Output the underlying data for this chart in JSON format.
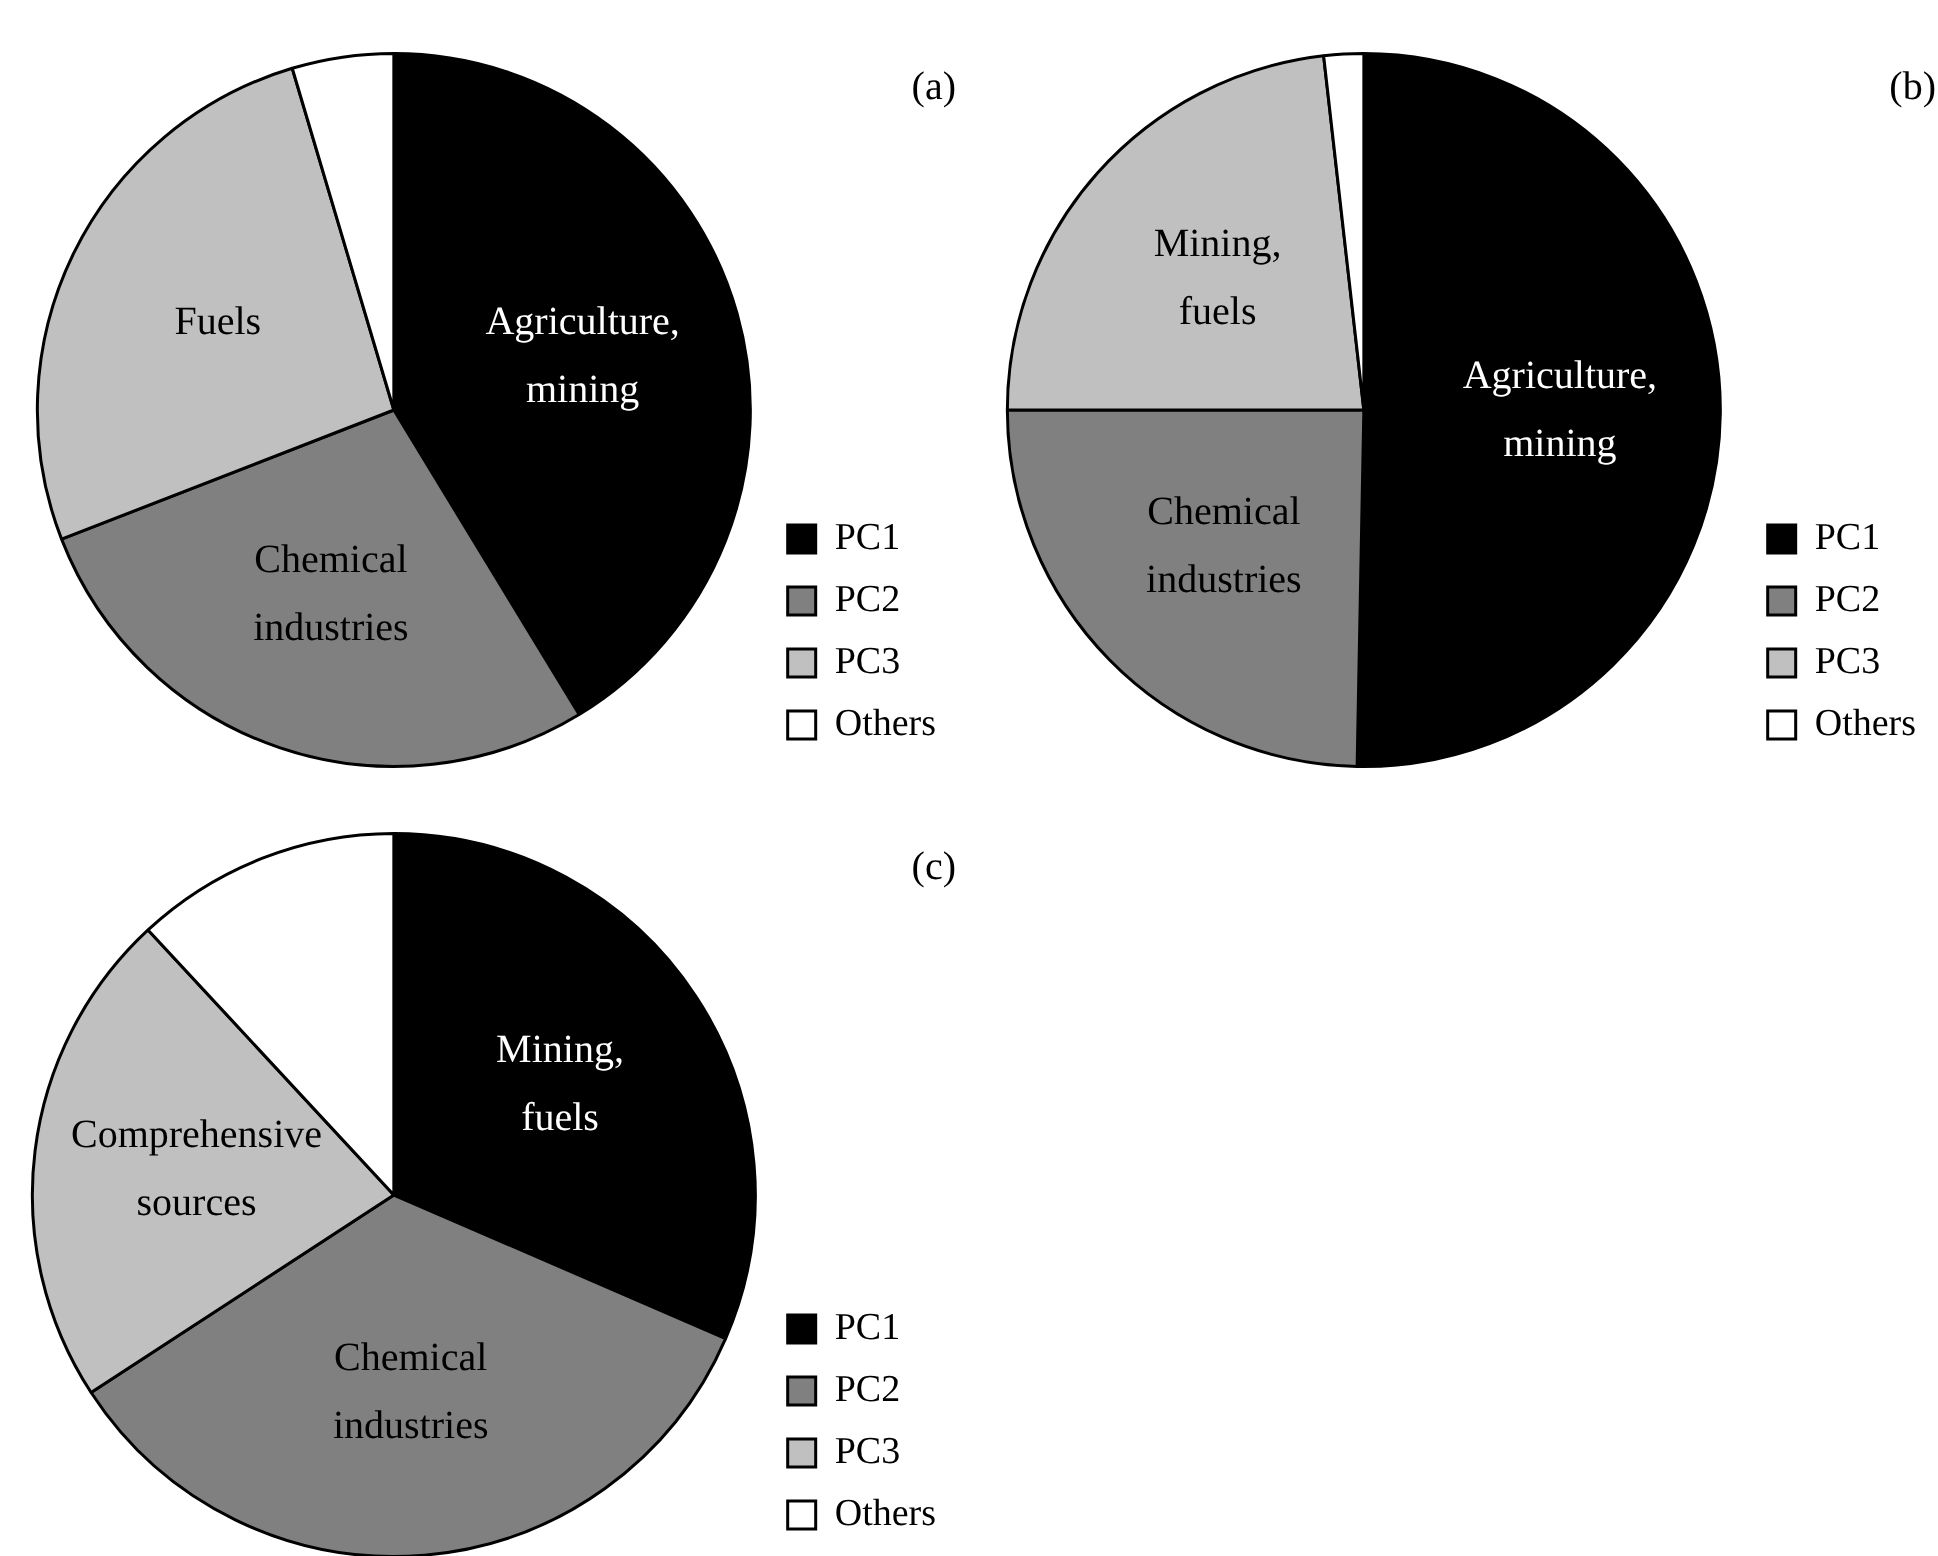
{
  "chart_data": [
    {
      "type": "pie",
      "title": "(a)",
      "categories": [
        "PC1",
        "PC2",
        "PC3",
        "Others"
      ],
      "values": [
        41.3,
        27.8,
        26.3,
        4.6
      ],
      "colors": [
        "#000000",
        "#808080",
        "#c0c0c0",
        "#ffffff"
      ],
      "legend": "bottom right",
      "annotations": [
        {
          "text": "Agriculture,\nmining",
          "x": "PC1"
        },
        {
          "text": "Chemical\nindustries",
          "x": "PC2"
        },
        {
          "text": "Fuels",
          "x": "PC3"
        }
      ]
    },
    {
      "type": "pie",
      "title": "(b)",
      "categories": [
        "PC1",
        "PC2",
        "PC3",
        "Others"
      ],
      "values": [
        50.3,
        24.7,
        23.2,
        1.8
      ],
      "colors": [
        "#000000",
        "#808080",
        "#c0c0c0",
        "#ffffff"
      ],
      "legend": "bottom right",
      "annotations": [
        {
          "text": "Agriculture,\nmining",
          "x": "PC1"
        },
        {
          "text": "Chemical\nindustries",
          "x": "PC2"
        },
        {
          "text": "Mining,\nfuels",
          "x": "PC3"
        }
      ]
    },
    {
      "type": "pie",
      "title": "(c)",
      "categories": [
        "PC1",
        "PC2",
        "PC3",
        "Others"
      ],
      "values": [
        31.5,
        34.3,
        22.3,
        11.9
      ],
      "colors": [
        "#000000",
        "#808080",
        "#c0c0c0",
        "#ffffff"
      ],
      "legend": "bottom right",
      "annotations": [
        {
          "text": "Mining,\nfuels",
          "x": "PC1"
        },
        {
          "text": "Chemical\nindustries",
          "x": "PC2"
        },
        {
          "text": "Comprehensive\nsources",
          "x": "PC3"
        }
      ]
    }
  ]
}
